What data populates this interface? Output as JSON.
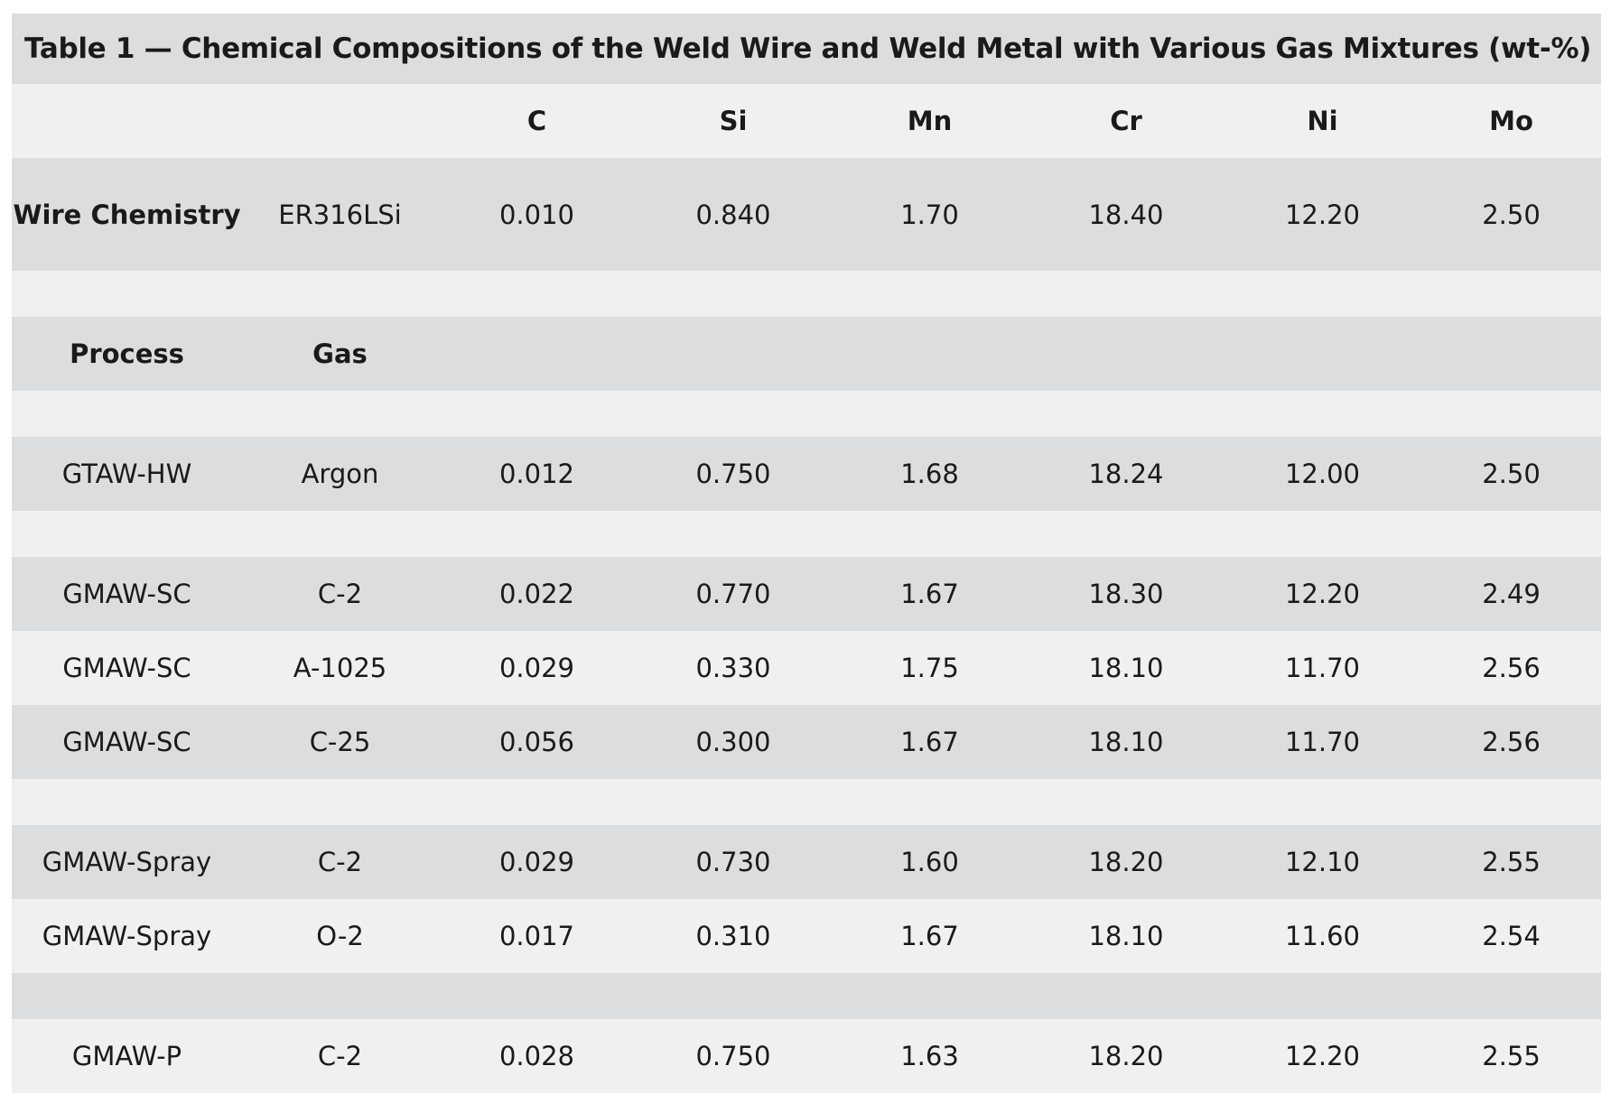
{
  "table": {
    "caption": "Table 1 — Chemical Compositions of the Weld Wire and Weld Metal with Various Gas Mixtures (wt-%)",
    "column_headers": [
      "",
      "",
      "C",
      "Si",
      "Mn",
      "Cr",
      "Ni",
      "Mo"
    ],
    "wire_row": {
      "label": "Wire Chemistry",
      "wire": "ER316LSi",
      "values": [
        "0.010",
        "0.840",
        "1.70",
        "18.40",
        "12.20",
        "2.50"
      ]
    },
    "sub_headers": [
      "Process",
      "Gas"
    ],
    "rows": [
      {
        "process": "GTAW-HW",
        "gas": "Argon",
        "values": [
          "0.012",
          "0.750",
          "1.68",
          "18.24",
          "12.00",
          "2.50"
        ]
      },
      {
        "process": "GMAW-SC",
        "gas": "C-2",
        "values": [
          "0.022",
          "0.770",
          "1.67",
          "18.30",
          "12.20",
          "2.49"
        ]
      },
      {
        "process": "GMAW-SC",
        "gas": "A-1025",
        "values": [
          "0.029",
          "0.330",
          "1.75",
          "18.10",
          "11.70",
          "2.56"
        ]
      },
      {
        "process": "GMAW-SC",
        "gas": "C-25",
        "values": [
          "0.056",
          "0.300",
          "1.67",
          "18.10",
          "11.70",
          "2.56"
        ]
      },
      {
        "process": "GMAW-Spray",
        "gas": "C-2",
        "values": [
          "0.029",
          "0.730",
          "1.60",
          "18.20",
          "12.10",
          "2.55"
        ]
      },
      {
        "process": "GMAW-Spray",
        "gas": "O-2",
        "values": [
          "0.017",
          "0.310",
          "1.67",
          "18.10",
          "11.60",
          "2.54"
        ]
      },
      {
        "process": "GMAW-P",
        "gas": "C-2",
        "values": [
          "0.028",
          "0.750",
          "1.63",
          "18.20",
          "12.20",
          "2.55"
        ]
      }
    ]
  }
}
